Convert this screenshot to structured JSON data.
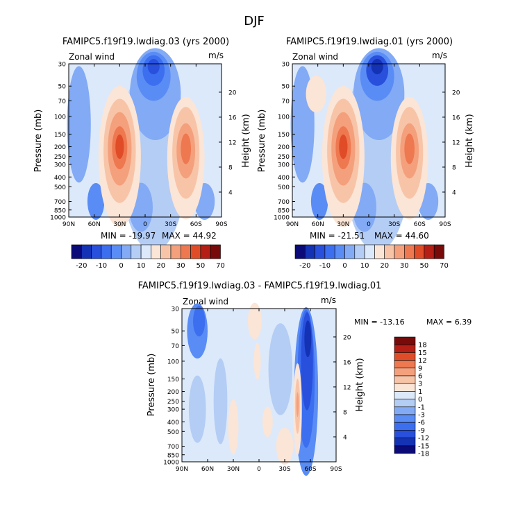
{
  "page": {
    "title": "DJF"
  },
  "chart_data": [
    {
      "type": "heatmap",
      "title": "FAMIPC5.f19f19.lwdiag.03 (yrs 2000)",
      "variable": "Zonal wind",
      "units": "m/s",
      "ylabel": "Pressure (mb)",
      "y2label": "Height (km)",
      "xticks": [
        "90N",
        "60N",
        "30N",
        "0",
        "30S",
        "60S",
        "90S"
      ],
      "yticks": [
        "30",
        "50",
        "70",
        "100",
        "150",
        "200",
        "250",
        "300",
        "400",
        "500",
        "700",
        "850",
        "1000"
      ],
      "y2ticks": [
        "20",
        "16",
        "12",
        "8",
        "4"
      ],
      "min_label": "MIN = -19.97",
      "max_label": "MAX =  44.92",
      "colorbar_labels": [
        "-20",
        "-10",
        "0",
        "10",
        "20",
        "30",
        "50",
        "70"
      ],
      "jets": [
        {
          "lat": 30,
          "pressure": 200,
          "peak": 44.92
        },
        {
          "lat": -48,
          "pressure": 200,
          "peak": 30
        }
      ],
      "easterly_core": {
        "lat": -10,
        "pressure": 30,
        "value": -19.97
      }
    },
    {
      "type": "heatmap",
      "title": "FAMIPC5.f19f19.lwdiag.01 (yrs 2000)",
      "variable": "Zonal wind",
      "units": "m/s",
      "ylabel": "Pressure (mb)",
      "y2label": "Height (km)",
      "xticks": [
        "90N",
        "60N",
        "30N",
        "0",
        "30S",
        "60S",
        "90S"
      ],
      "yticks": [
        "30",
        "50",
        "70",
        "100",
        "150",
        "200",
        "250",
        "300",
        "400",
        "500",
        "700",
        "850",
        "1000"
      ],
      "y2ticks": [
        "20",
        "16",
        "12",
        "8",
        "4"
      ],
      "min_label": "MIN = -21.51",
      "max_label": "MAX =  44.60",
      "colorbar_labels": [
        "-20",
        "-10",
        "0",
        "10",
        "20",
        "30",
        "50",
        "70"
      ],
      "jets": [
        {
          "lat": 30,
          "pressure": 200,
          "peak": 44.6
        },
        {
          "lat": -48,
          "pressure": 200,
          "peak": 28
        }
      ],
      "easterly_core": {
        "lat": -10,
        "pressure": 30,
        "value": -21.51
      }
    },
    {
      "type": "heatmap",
      "title": "FAMIPC5.f19f19.lwdiag.03 - FAMIPC5.f19f19.lwdiag.01",
      "variable": "Zonal wind",
      "units": "m/s",
      "ylabel": "Pressure (mb)",
      "y2label": "Height (km)",
      "xticks": [
        "90N",
        "60N",
        "30N",
        "0",
        "30S",
        "60S",
        "90S"
      ],
      "yticks": [
        "30",
        "50",
        "70",
        "100",
        "150",
        "200",
        "250",
        "300",
        "400",
        "500",
        "700",
        "850",
        "1000"
      ],
      "y2ticks": [
        "20",
        "16",
        "12",
        "8",
        "4"
      ],
      "min_label": "MIN = -13.16",
      "max_label": "MAX =   6.39",
      "colorbar_labels": [
        "18",
        "15",
        "12",
        "9",
        "6",
        "3",
        "1",
        "0",
        "-1",
        "-3",
        "-6",
        "-9",
        "-12",
        "-15",
        "-18"
      ],
      "min": -13.16,
      "max": 6.39
    }
  ],
  "palettes": {
    "abs": [
      "#0a0a78",
      "#1432b4",
      "#2850dc",
      "#3c6ef0",
      "#5a8cf5",
      "#82aaf5",
      "#b4cdf5",
      "#dce9fa",
      "#fbe5d6",
      "#f8c4a8",
      "#f4a07c",
      "#ee7850",
      "#e04c28",
      "#b41e14",
      "#780a0a"
    ],
    "diff": [
      "#0a0a78",
      "#1432b4",
      "#2850dc",
      "#3c6ef0",
      "#5a8cf5",
      "#82aaf5",
      "#b4cdf5",
      "#dce9fa",
      "#fbe5d6",
      "#f8c4a8",
      "#f4a07c",
      "#ee7850",
      "#e04c28",
      "#b41e14",
      "#780a0a"
    ]
  }
}
